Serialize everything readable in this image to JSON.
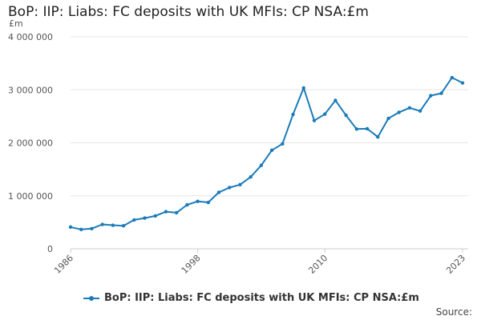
{
  "title": "BoP: IIP: Liabs: FC deposits with UK MFIs: CP NSA:£m",
  "source_label": "Source:",
  "colors": {
    "series": "#1a7bb9",
    "grid": "#e6e6e6",
    "axis": "#cccccc"
  },
  "chart_data": {
    "type": "line",
    "title": "BoP: IIP: Liabs: FC deposits with UK MFIs: CP NSA:£m",
    "xlabel": "",
    "ylabel": "£m",
    "xlim": [
      1986,
      2023
    ],
    "ylim": [
      0,
      4000000
    ],
    "x_ticks": [
      1986,
      1998,
      2010,
      2023
    ],
    "y_ticks": [
      0,
      1000000,
      2000000,
      3000000,
      4000000
    ],
    "y_tick_labels": [
      "0",
      "1 000 000",
      "2 000 000",
      "3 000 000",
      "4 000 000"
    ],
    "grid": true,
    "legend_position": "bottom",
    "series": [
      {
        "name": "BoP: IIP: Liabs: FC deposits with UK MFIs: CP NSA:£m",
        "x": [
          1986,
          1987,
          1988,
          1989,
          1990,
          1991,
          1992,
          1993,
          1994,
          1995,
          1996,
          1997,
          1998,
          1999,
          2000,
          2001,
          2002,
          2003,
          2004,
          2005,
          2006,
          2007,
          2008,
          2009,
          2010,
          2011,
          2012,
          2013,
          2014,
          2015,
          2016,
          2017,
          2018,
          2019,
          2020,
          2021,
          2022,
          2023
        ],
        "values": [
          410000,
          365000,
          380000,
          460000,
          445000,
          435000,
          545000,
          580000,
          620000,
          700000,
          680000,
          830000,
          895000,
          875000,
          1065000,
          1155000,
          1210000,
          1355000,
          1575000,
          1860000,
          1980000,
          2535000,
          3035000,
          2420000,
          2540000,
          2800000,
          2520000,
          2260000,
          2265000,
          2110000,
          2460000,
          2575000,
          2660000,
          2600000,
          2890000,
          2935000,
          3230000,
          3130000
        ]
      }
    ]
  }
}
